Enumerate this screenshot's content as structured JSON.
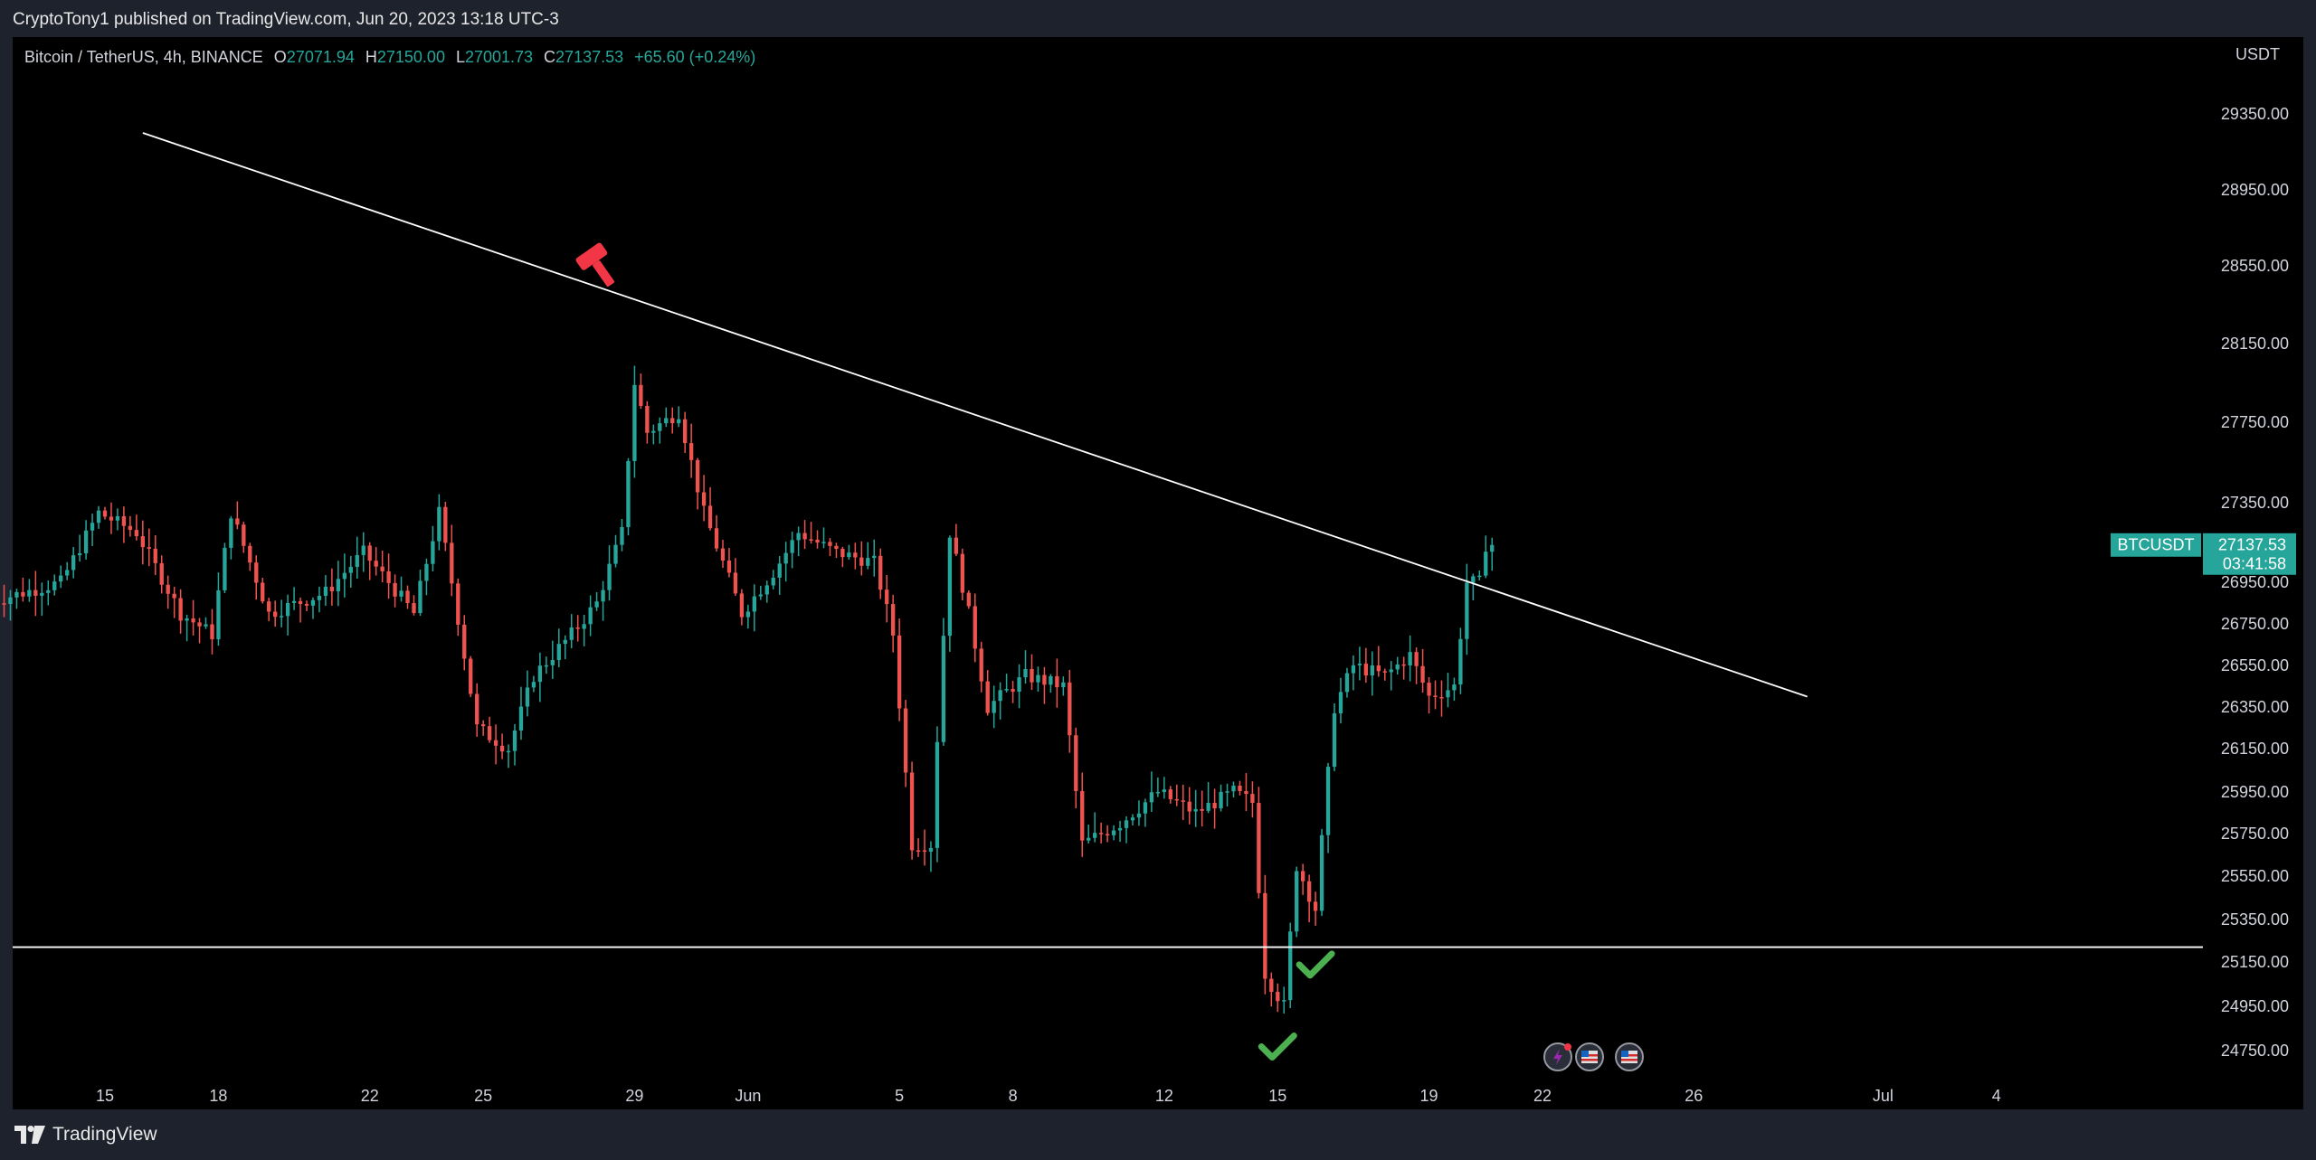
{
  "header": {
    "published": "CryptoTony1 published on TradingView.com, Jun 20, 2023 13:18 UTC-3"
  },
  "legend": {
    "symbol": "Bitcoin / TetherUS, 4h, BINANCE",
    "o_label": "O",
    "o_value": "27071.94",
    "h_label": "H",
    "h_value": "27150.00",
    "l_label": "L",
    "l_value": "27001.73",
    "c_label": "C",
    "c_value": "27137.53",
    "change": "+65.60 (+0.24%)"
  },
  "price_axis": {
    "currency": "USDT",
    "ticks": [
      "29350.00",
      "28950.00",
      "28550.00",
      "28150.00",
      "27750.00",
      "27350.00",
      "26950.00",
      "26750.00",
      "26550.00",
      "26350.00",
      "26150.00",
      "25950.00",
      "25750.00",
      "25550.00",
      "25350.00",
      "25150.00",
      "24950.00",
      "24750.00"
    ]
  },
  "price_tag": {
    "symbol": "BTCUSDT",
    "price": "27137.53",
    "countdown": "03:41:58"
  },
  "footer": {
    "brand": "TradingView"
  },
  "colors": {
    "up": "#26a69a",
    "down": "#ef5350",
    "line": "#ffffff",
    "check": "#4caf50",
    "hammer": "#f23645"
  },
  "chart_data": {
    "type": "candlestick",
    "interval": "4h",
    "exchange": "BINANCE",
    "y_unit": "USDT",
    "x_ticks": [
      "15",
      "18",
      "22",
      "25",
      "29",
      "Jun",
      "5",
      "8",
      "12",
      "15",
      "19",
      "22",
      "26",
      "Jul",
      "4"
    ],
    "y_ticks": [
      29350,
      28950,
      28550,
      28150,
      27750,
      27350,
      26950,
      26750,
      26550,
      26350,
      26150,
      25950,
      25750,
      25550,
      25350,
      25150,
      24950,
      24750
    ],
    "last_close": 27137.53,
    "trendline": {
      "from": {
        "date": "May 16",
        "price": 29250
      },
      "to": {
        "date": "Jun 29",
        "price": 26400
      }
    },
    "support_line": {
      "price": 25220
    },
    "annotations": [
      {
        "kind": "hammer",
        "date": "May 28",
        "price": 28560
      },
      {
        "kind": "check",
        "date": "Jun 15",
        "price": 24760
      },
      {
        "kind": "check",
        "date": "Jun 16",
        "price": 25130
      }
    ],
    "waypoints": [
      {
        "date": "May 12 00:00",
        "price": 26850
      },
      {
        "date": "May 14 00:00",
        "price": 26950
      },
      {
        "date": "May 15 00:00",
        "price": 27300
      },
      {
        "date": "May 16 00:00",
        "price": 27200
      },
      {
        "date": "May 17 04:00",
        "price": 26800
      },
      {
        "date": "May 18 00:00",
        "price": 26700
      },
      {
        "date": "May 18 12:00",
        "price": 27300
      },
      {
        "date": "May 19 12:00",
        "price": 26800
      },
      {
        "date": "May 21 00:00",
        "price": 26900
      },
      {
        "date": "May 22 00:00",
        "price": 27100
      },
      {
        "date": "May 23 08:00",
        "price": 26800
      },
      {
        "date": "May 24 00:00",
        "price": 27300
      },
      {
        "date": "May 25 00:00",
        "price": 26250
      },
      {
        "date": "May 25 20:00",
        "price": 26150
      },
      {
        "date": "May 26 12:00",
        "price": 26500
      },
      {
        "date": "May 27 12:00",
        "price": 26700
      },
      {
        "date": "May 28 04:00",
        "price": 26850
      },
      {
        "date": "May 28 20:00",
        "price": 27200
      },
      {
        "date": "May 29 04:00",
        "price": 27950
      },
      {
        "date": "May 29 12:00",
        "price": 27700
      },
      {
        "date": "May 30 08:00",
        "price": 27800
      },
      {
        "date": "May 31 00:00",
        "price": 27300
      },
      {
        "date": "Jun 01 00:00",
        "price": 26800
      },
      {
        "date": "Jun 01 20:00",
        "price": 27000
      },
      {
        "date": "Jun 02 12:00",
        "price": 27200
      },
      {
        "date": "Jun 03 12:00",
        "price": 27100
      },
      {
        "date": "Jun 04 12:00",
        "price": 27050
      },
      {
        "date": "Jun 05 00:00",
        "price": 26700
      },
      {
        "date": "Jun 05 12:00",
        "price": 25700
      },
      {
        "date": "Jun 06 00:00",
        "price": 25700
      },
      {
        "date": "Jun 06 12:00",
        "price": 27200
      },
      {
        "date": "Jun 07 00:00",
        "price": 26800
      },
      {
        "date": "Jun 07 12:00",
        "price": 26350
      },
      {
        "date": "Jun 08 12:00",
        "price": 26500
      },
      {
        "date": "Jun 09 12:00",
        "price": 26450
      },
      {
        "date": "Jun 10 00:00",
        "price": 25700
      },
      {
        "date": "Jun 11 00:00",
        "price": 25800
      },
      {
        "date": "Jun 12 00:00",
        "price": 25950
      },
      {
        "date": "Jun 13 00:00",
        "price": 25850
      },
      {
        "date": "Jun 14 00:00",
        "price": 25950
      },
      {
        "date": "Jun 14 12:00",
        "price": 25900
      },
      {
        "date": "Jun 14 20:00",
        "price": 25100
      },
      {
        "date": "Jun 15 08:00",
        "price": 24950
      },
      {
        "date": "Jun 15 16:00",
        "price": 25600
      },
      {
        "date": "Jun 16 04:00",
        "price": 25400
      },
      {
        "date": "Jun 16 16:00",
        "price": 26350
      },
      {
        "date": "Jun 17 04:00",
        "price": 26550
      },
      {
        "date": "Jun 18 00:00",
        "price": 26500
      },
      {
        "date": "Jun 18 16:00",
        "price": 26600
      },
      {
        "date": "Jun 19 04:00",
        "price": 26400
      },
      {
        "date": "Jun 19 20:00",
        "price": 26450
      },
      {
        "date": "Jun 20 04:00",
        "price": 26950
      },
      {
        "date": "Jun 20 12:00",
        "price": 26950
      },
      {
        "date": "Jun 20 16:00",
        "price": 27137.53
      }
    ]
  }
}
